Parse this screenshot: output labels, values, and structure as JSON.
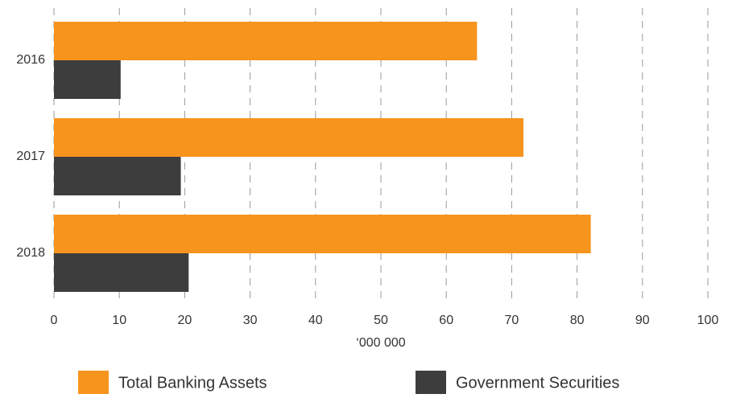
{
  "chart_data": {
    "type": "bar",
    "orientation": "horizontal",
    "categories": [
      "2016",
      "2017",
      "2018"
    ],
    "series": [
      {
        "name": "Total Banking Assets",
        "color": "#f7941d",
        "values": [
          64.7,
          71.8,
          82.1
        ]
      },
      {
        "name": "Government Securities",
        "color": "#3d3d3d",
        "values": [
          10.2,
          19.4,
          20.6
        ]
      }
    ],
    "xlabel": "‘000 000",
    "xlim": [
      0,
      100
    ],
    "xticks": [
      0,
      10,
      20,
      30,
      40,
      50,
      60,
      70,
      80,
      90,
      100
    ],
    "grid": true,
    "legend": "bottom"
  }
}
